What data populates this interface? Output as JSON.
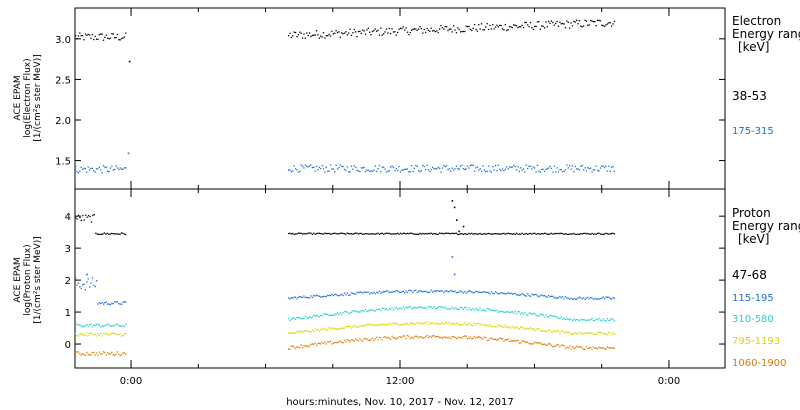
{
  "chart_data": [
    {
      "type": "scatter",
      "ylabel_lines": [
        "ACE EPAM",
        "log(Electron Flux)",
        "[1/(cm²s ster MeV)]"
      ],
      "xlim": [
        -2.5,
        26.5
      ],
      "ylim": [
        1.15,
        3.38
      ],
      "yticks": [
        1.5,
        2.0,
        2.5,
        3.0
      ],
      "ytick_labels": [
        "1.5",
        "2.0",
        "2.5",
        "3.0"
      ],
      "legend_title": [
        "Electron",
        "Energy ranges",
        "[keV]"
      ],
      "series": [
        {
          "name": "38-53",
          "color": "#000000",
          "segments": [
            {
              "x_start": -2.5,
              "x_end": -0.2,
              "mean": 3.03,
              "jitter": 0.05
            },
            {
              "x_start": 7.0,
              "x_end": 21.6,
              "mean": 3.05,
              "slope": 0.011,
              "jitter": 0.05
            }
          ],
          "outliers": [
            [
              -0.1,
              2.73
            ]
          ]
        },
        {
          "name": "175-315",
          "color": "#1f6fd6",
          "segments": [
            {
              "x_start": -2.5,
              "x_end": -0.2,
              "mean": 1.4,
              "jitter": 0.045
            },
            {
              "x_start": 7.0,
              "x_end": 21.6,
              "mean": 1.41,
              "slope": 0,
              "jitter": 0.045
            }
          ],
          "outliers": [
            [
              -0.15,
              1.6
            ]
          ]
        }
      ]
    },
    {
      "type": "scatter",
      "ylabel_lines": [
        "ACE EPAM",
        "log(Proton Flux)",
        "[1/(cm²s ster MeV)]"
      ],
      "xlim": [
        -2.5,
        26.5
      ],
      "ylim": [
        -0.75,
        4.85
      ],
      "yticks": [
        0,
        1,
        2,
        3,
        4
      ],
      "ytick_labels": [
        "0",
        "1",
        "2",
        "3",
        "4"
      ],
      "legend_title": [
        "Proton",
        "Energy ranges",
        "[keV]"
      ],
      "series": [
        {
          "name": "47-68",
          "color": "#000000",
          "segments": [
            {
              "x_start": -2.5,
              "x_end": -1.6,
              "mean": 3.95,
              "jitter": 0.12
            },
            {
              "x_start": -1.6,
              "x_end": -0.2,
              "mean": 3.47,
              "jitter": 0.03
            },
            {
              "x_start": 7.0,
              "x_end": 21.6,
              "mean": 3.47,
              "slope": 0,
              "jitter": 0.02
            }
          ],
          "outliers": [
            [
              14.3,
              4.5
            ],
            [
              14.4,
              4.3
            ],
            [
              14.5,
              3.9
            ],
            [
              14.6,
              3.55
            ],
            [
              14.8,
              3.7
            ]
          ]
        },
        {
          "name": "115-195",
          "color": "#1f6fd6",
          "segments": [
            {
              "x_start": -2.5,
              "x_end": -1.5,
              "mean": 1.9,
              "jitter": 0.2
            },
            {
              "x_start": -1.5,
              "x_end": -0.2,
              "mean": 1.3,
              "jitter": 0.05
            },
            {
              "x_start": 7.0,
              "x_end": 21.6,
              "mean": 1.45,
              "hump": 0.22,
              "jitter": 0.04
            }
          ],
          "outliers": [
            [
              14.3,
              2.75
            ],
            [
              14.4,
              2.2
            ],
            [
              -2.0,
              2.2
            ]
          ]
        },
        {
          "name": "310-580",
          "color": "#22d0d0",
          "segments": [
            {
              "x_start": -2.5,
              "x_end": -0.2,
              "mean": 0.6,
              "jitter": 0.05
            },
            {
              "x_start": 7.0,
              "x_end": 21.6,
              "mean": 0.78,
              "hump": 0.38,
              "jitter": 0.04
            }
          ],
          "outliers": []
        },
        {
          "name": "795-1193",
          "color": "#d7d700",
          "segments": [
            {
              "x_start": -2.5,
              "x_end": -0.2,
              "mean": 0.32,
              "jitter": 0.05
            },
            {
              "x_start": 7.0,
              "x_end": 21.6,
              "mean": 0.35,
              "hump": 0.32,
              "jitter": 0.04
            }
          ],
          "outliers": []
        },
        {
          "name": "1060-1900",
          "color": "#e07a00",
          "segments": [
            {
              "x_start": -2.5,
              "x_end": -0.2,
              "mean": -0.28,
              "jitter": 0.06
            },
            {
              "x_start": 7.0,
              "x_end": 21.6,
              "mean": -0.1,
              "hump": 0.35,
              "jitter": 0.05
            }
          ],
          "outliers": []
        }
      ]
    }
  ],
  "shared_x": {
    "xticks": [
      0,
      12,
      24
    ],
    "xtick_labels": [
      "0:00",
      "12:00",
      "0:00"
    ],
    "xlabel": "hours:minutes, Nov. 10, 2017 - Nov. 12, 2017"
  }
}
